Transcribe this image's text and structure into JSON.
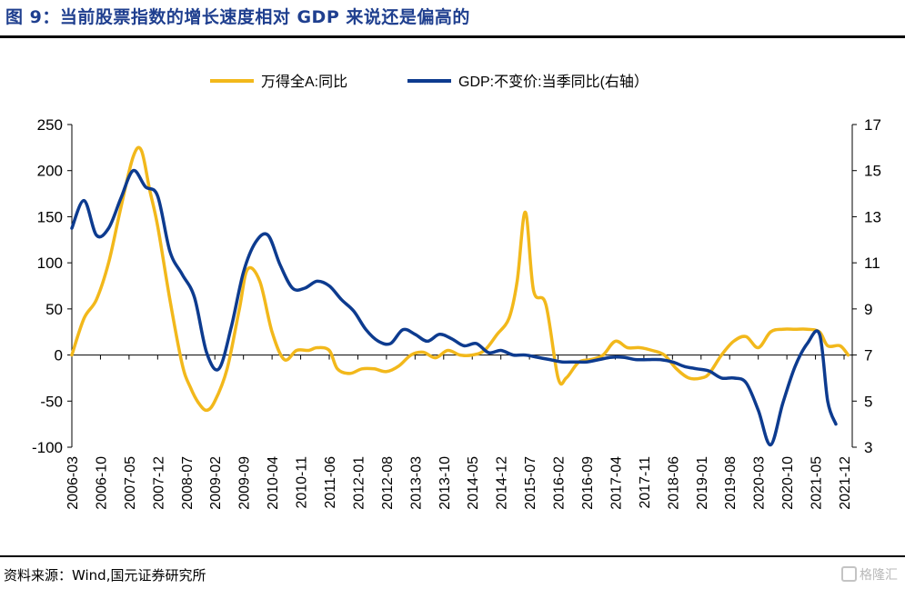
{
  "header": {
    "title": "图 9：当前股票指数的增长速度相对 GDP 来说还是偏高的"
  },
  "footer": {
    "source": "资料来源：Wind,国元证券研究所",
    "watermark": "格隆汇"
  },
  "colors": {
    "series_a": "#f2b81b",
    "series_gdp": "#0d3b8f",
    "title": "#1f3f8f"
  },
  "chart_data": {
    "type": "line",
    "legend": {
      "position": "top-center",
      "entries": [
        "万得全A:同比",
        "GDP:不变价:当季同比(右轴）"
      ]
    },
    "x_tick_labels": [
      "2006-03",
      "2006-10",
      "2007-05",
      "2007-12",
      "2008-07",
      "2009-02",
      "2009-09",
      "2010-04",
      "2010-11",
      "2011-06",
      "2012-01",
      "2012-08",
      "2013-03",
      "2013-10",
      "2014-05",
      "2014-12",
      "2015-07",
      "2016-02",
      "2016-09",
      "2017-04",
      "2017-11",
      "2018-06",
      "2019-01",
      "2019-08",
      "2020-03",
      "2020-10",
      "2021-05",
      "2021-12"
    ],
    "y_left": {
      "range": [
        -100,
        250
      ],
      "ticks": [
        -100,
        -50,
        0,
        50,
        100,
        150,
        200,
        250
      ]
    },
    "y_right": {
      "range": [
        3,
        17
      ],
      "ticks": [
        3,
        5,
        7,
        9,
        11,
        13,
        15,
        17
      ]
    },
    "grid": false,
    "series": [
      {
        "name": "万得全A:同比",
        "axis": "left",
        "points": [
          [
            "2006-03",
            0
          ],
          [
            "2006-06",
            40
          ],
          [
            "2006-09",
            60
          ],
          [
            "2006-12",
            100
          ],
          [
            "2007-03",
            160
          ],
          [
            "2007-06",
            215
          ],
          [
            "2007-08",
            222
          ],
          [
            "2007-10",
            180
          ],
          [
            "2007-12",
            140
          ],
          [
            "2008-03",
            60
          ],
          [
            "2008-06",
            -10
          ],
          [
            "2008-08",
            -35
          ],
          [
            "2008-10",
            -52
          ],
          [
            "2008-12",
            -60
          ],
          [
            "2009-02",
            -50
          ],
          [
            "2009-05",
            -15
          ],
          [
            "2009-08",
            50
          ],
          [
            "2009-10",
            93
          ],
          [
            "2010-01",
            80
          ],
          [
            "2010-04",
            25
          ],
          [
            "2010-07",
            -5
          ],
          [
            "2010-10",
            5
          ],
          [
            "2011-01",
            5
          ],
          [
            "2011-03",
            8
          ],
          [
            "2011-06",
            5
          ],
          [
            "2011-08",
            -15
          ],
          [
            "2011-11",
            -20
          ],
          [
            "2012-02",
            -15
          ],
          [
            "2012-05",
            -15
          ],
          [
            "2012-08",
            -18
          ],
          [
            "2012-11",
            -12
          ],
          [
            "2013-02",
            0
          ],
          [
            "2013-05",
            3
          ],
          [
            "2013-08",
            -3
          ],
          [
            "2013-11",
            5
          ],
          [
            "2014-02",
            0
          ],
          [
            "2014-05",
            0
          ],
          [
            "2014-08",
            5
          ],
          [
            "2014-11",
            22
          ],
          [
            "2015-02",
            40
          ],
          [
            "2015-04",
            80
          ],
          [
            "2015-06",
            155
          ],
          [
            "2015-08",
            70
          ],
          [
            "2015-11",
            55
          ],
          [
            "2016-02",
            -25
          ],
          [
            "2016-04",
            -25
          ],
          [
            "2016-07",
            -8
          ],
          [
            "2016-10",
            -5
          ],
          [
            "2017-01",
            0
          ],
          [
            "2017-04",
            15
          ],
          [
            "2017-07",
            8
          ],
          [
            "2017-10",
            8
          ],
          [
            "2018-01",
            5
          ],
          [
            "2018-04",
            0
          ],
          [
            "2018-07",
            -15
          ],
          [
            "2018-10",
            -25
          ],
          [
            "2019-01",
            -25
          ],
          [
            "2019-03",
            -20
          ],
          [
            "2019-06",
            0
          ],
          [
            "2019-09",
            15
          ],
          [
            "2019-12",
            20
          ],
          [
            "2020-03",
            8
          ],
          [
            "2020-06",
            25
          ],
          [
            "2020-09",
            28
          ],
          [
            "2020-12",
            28
          ],
          [
            "2021-03",
            28
          ],
          [
            "2021-06",
            25
          ],
          [
            "2021-08",
            10
          ],
          [
            "2021-11",
            10
          ],
          [
            "2022-01",
            0
          ]
        ]
      },
      {
        "name": "GDP:不变价:当季同比(右轴）",
        "axis": "right",
        "points": [
          [
            "2006-03",
            12.5
          ],
          [
            "2006-06",
            13.7
          ],
          [
            "2006-09",
            12.2
          ],
          [
            "2006-12",
            12.5
          ],
          [
            "2007-03",
            13.8
          ],
          [
            "2007-06",
            15.0
          ],
          [
            "2007-09",
            14.3
          ],
          [
            "2007-12",
            13.9
          ],
          [
            "2008-03",
            11.5
          ],
          [
            "2008-06",
            10.5
          ],
          [
            "2008-09",
            9.5
          ],
          [
            "2008-12",
            7.1
          ],
          [
            "2009-03",
            6.4
          ],
          [
            "2009-06",
            8.2
          ],
          [
            "2009-09",
            10.6
          ],
          [
            "2009-12",
            11.9
          ],
          [
            "2010-03",
            12.2
          ],
          [
            "2010-06",
            10.9
          ],
          [
            "2010-09",
            9.9
          ],
          [
            "2010-12",
            9.9
          ],
          [
            "2011-03",
            10.2
          ],
          [
            "2011-06",
            10.0
          ],
          [
            "2011-09",
            9.4
          ],
          [
            "2011-12",
            8.9
          ],
          [
            "2012-03",
            8.1
          ],
          [
            "2012-06",
            7.6
          ],
          [
            "2012-09",
            7.5
          ],
          [
            "2012-12",
            8.1
          ],
          [
            "2013-03",
            7.9
          ],
          [
            "2013-06",
            7.6
          ],
          [
            "2013-09",
            7.9
          ],
          [
            "2013-12",
            7.7
          ],
          [
            "2014-03",
            7.4
          ],
          [
            "2014-06",
            7.5
          ],
          [
            "2014-09",
            7.1
          ],
          [
            "2014-12",
            7.2
          ],
          [
            "2015-03",
            7.0
          ],
          [
            "2015-06",
            7.0
          ],
          [
            "2015-09",
            6.9
          ],
          [
            "2015-12",
            6.8
          ],
          [
            "2016-03",
            6.7
          ],
          [
            "2016-06",
            6.7
          ],
          [
            "2016-09",
            6.7
          ],
          [
            "2016-12",
            6.8
          ],
          [
            "2017-03",
            6.9
          ],
          [
            "2017-06",
            6.9
          ],
          [
            "2017-09",
            6.8
          ],
          [
            "2017-12",
            6.8
          ],
          [
            "2018-03",
            6.8
          ],
          [
            "2018-06",
            6.7
          ],
          [
            "2018-09",
            6.5
          ],
          [
            "2018-12",
            6.4
          ],
          [
            "2019-03",
            6.3
          ],
          [
            "2019-06",
            6.0
          ],
          [
            "2019-09",
            6.0
          ],
          [
            "2019-12",
            5.8
          ],
          [
            "2020-03",
            4.6
          ],
          [
            "2020-06",
            3.1
          ],
          [
            "2020-09",
            4.9
          ],
          [
            "2020-12",
            6.5
          ],
          [
            "2021-03",
            7.5
          ],
          [
            "2021-06",
            7.9
          ],
          [
            "2021-08",
            5.0
          ],
          [
            "2021-10",
            4.0
          ]
        ]
      }
    ]
  }
}
